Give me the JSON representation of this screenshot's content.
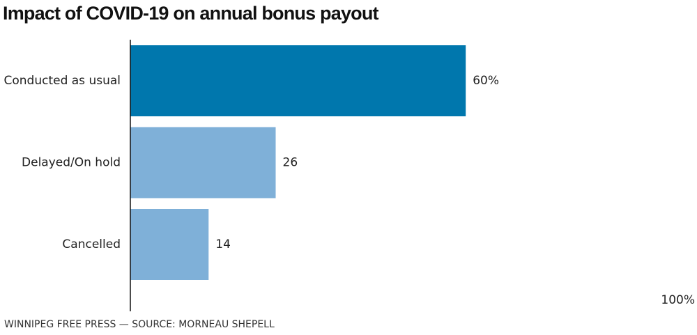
{
  "chart_data": {
    "type": "bar",
    "orientation": "horizontal",
    "title": "Impact of COVID-19 on annual bonus payout",
    "categories": [
      "Conducted as usual",
      "Delayed/On hold",
      "Cancelled"
    ],
    "values": [
      60,
      26,
      14
    ],
    "value_labels": [
      "60%",
      "26",
      "14"
    ],
    "colors": [
      "#0077ad",
      "#7fb0d8",
      "#7fb0d8"
    ],
    "xlim": [
      0,
      100
    ],
    "axis_max_label": "100%",
    "source": "WINNIPEG FREE PRESS — SOURCE: MORNEAU SHEPELL",
    "grid": false,
    "legend": "none"
  }
}
